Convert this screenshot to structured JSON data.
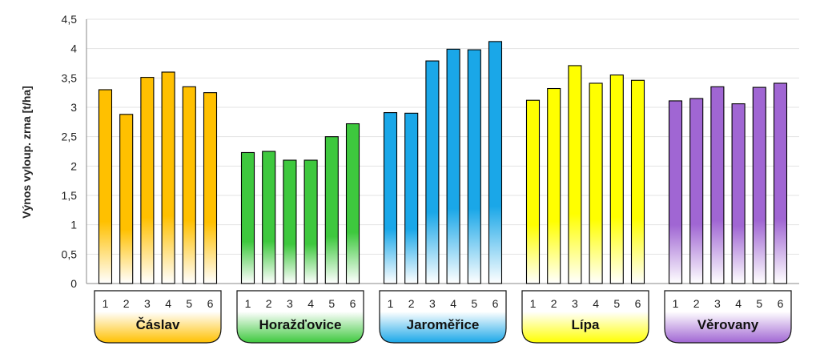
{
  "chart_data": {
    "type": "bar",
    "ylabel": "Výnos vyloup. zrna [t/ha]",
    "ylim": [
      0,
      4.5
    ],
    "yticks": [
      "0",
      "0,5",
      "1",
      "1,5",
      "2",
      "2,5",
      "3",
      "3,5",
      "4",
      "4,5"
    ],
    "grid": true,
    "categories": [
      "1",
      "2",
      "3",
      "4",
      "5",
      "6"
    ],
    "groups": [
      {
        "label": "Čáslav",
        "color": "#FFC000",
        "values": [
          3.3,
          2.88,
          3.51,
          3.6,
          3.35,
          3.25
        ]
      },
      {
        "label": "Horažďovice",
        "color": "#3EC83E",
        "values": [
          2.23,
          2.25,
          2.1,
          2.1,
          2.5,
          2.72
        ]
      },
      {
        "label": "Jaroměřice",
        "color": "#1AA7E8",
        "values": [
          2.91,
          2.9,
          3.79,
          3.99,
          3.98,
          4.12
        ]
      },
      {
        "label": "Lípa",
        "color": "#FFFF00",
        "values": [
          3.12,
          3.32,
          3.71,
          3.41,
          3.55,
          3.46
        ]
      },
      {
        "label": "Věrovany",
        "color": "#A066D3",
        "values": [
          3.11,
          3.15,
          3.35,
          3.06,
          3.34,
          3.41
        ]
      }
    ]
  }
}
